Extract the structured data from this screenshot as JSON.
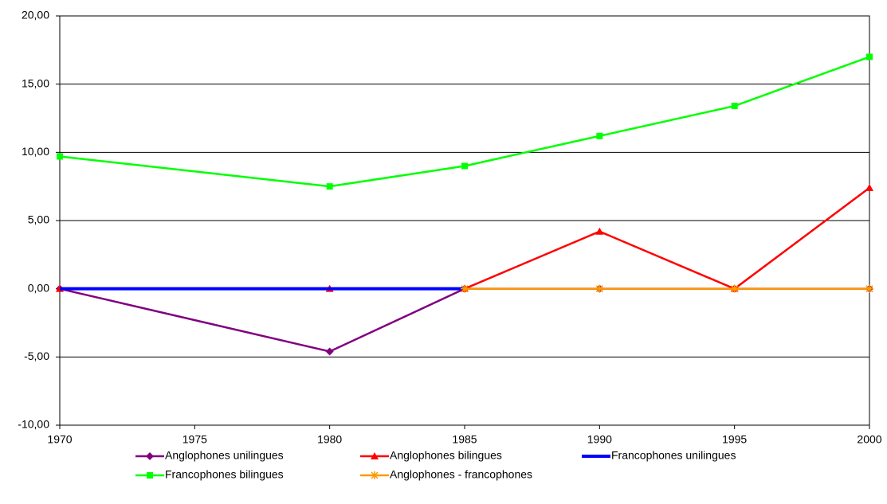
{
  "chart_data": {
    "type": "line",
    "x": [
      1970,
      1980,
      1985,
      1990,
      1995,
      2000
    ],
    "xlim": [
      1970,
      2000
    ],
    "xticks": [
      1970,
      1975,
      1980,
      1985,
      1990,
      1995,
      2000
    ],
    "ylim": [
      -10,
      20
    ],
    "yticks": [
      {
        "value": -10,
        "label": "-10,00"
      },
      {
        "value": -5,
        "label": "-5,00"
      },
      {
        "value": 0,
        "label": "0,00"
      },
      {
        "value": 5,
        "label": "5,00"
      },
      {
        "value": 10,
        "label": "10,00"
      },
      {
        "value": 15,
        "label": "15,00"
      },
      {
        "value": 20,
        "label": "20,00"
      }
    ],
    "grid": true,
    "legend": "bottom",
    "series": [
      {
        "name": "Anglophones unilingues",
        "color": "#800080",
        "marker": "diamond",
        "values": [
          0,
          -4.6,
          0,
          0,
          0,
          0
        ]
      },
      {
        "name": "Anglophones bilingues",
        "color": "#ff0000",
        "marker": "triangle",
        "values": [
          0,
          0,
          0,
          4.2,
          0,
          7.4
        ]
      },
      {
        "name": "Francophones unilingues",
        "color": "#0000ff",
        "marker": "none",
        "values": [
          0,
          0,
          0,
          null,
          null,
          null
        ]
      },
      {
        "name": "Francophones bilingues",
        "color": "#00ff00",
        "marker": "square",
        "values": [
          9.7,
          7.5,
          9.0,
          11.2,
          13.4,
          17.0
        ]
      },
      {
        "name": "Anglophones - francophones",
        "color": "#ff9900",
        "marker": "star",
        "values": [
          null,
          null,
          0,
          0,
          0,
          0
        ]
      }
    ]
  }
}
